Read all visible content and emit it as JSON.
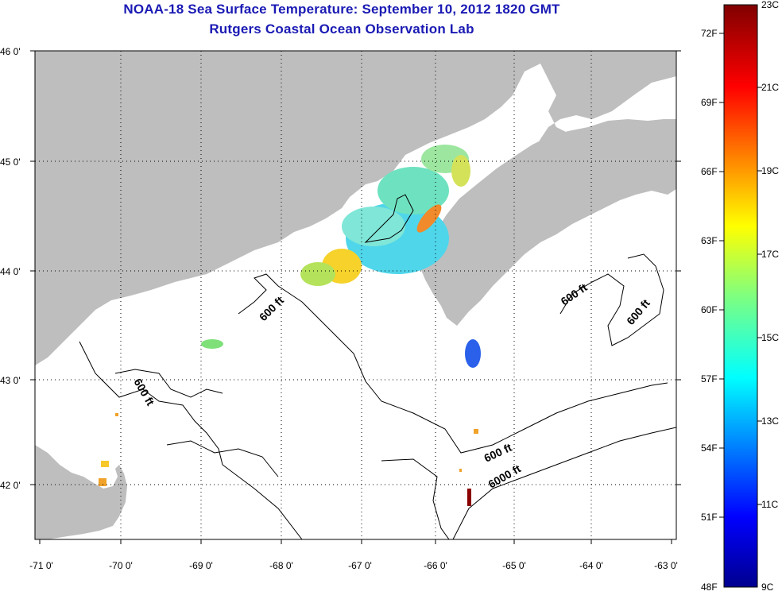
{
  "title": {
    "line1": "NOAA-18 Sea Surface Temperature:  September 10, 2012 1820 GMT",
    "line2": "Rutgers Coastal Ocean Observation Lab"
  },
  "axes": {
    "x_ticks": [
      "-71 0'",
      "-70 0'",
      "-69 0'",
      "-68 0'",
      "-67 0'",
      "-66 0'",
      "-65 0'",
      "-64 0'",
      "-63 0'"
    ],
    "y_ticks": [
      "46 0'",
      "45 0'",
      "44 0'",
      "43 0'",
      "42 0'"
    ],
    "lon_range": [
      -71,
      -63
    ],
    "lat_range": [
      41.5,
      46
    ]
  },
  "contour_labels": [
    {
      "text": "600 ft"
    },
    {
      "text": "600 ft"
    },
    {
      "text": "600 ft"
    },
    {
      "text": "600 ft"
    },
    {
      "text": "600 ft"
    },
    {
      "text": "6000 ft"
    }
  ],
  "colorbar": {
    "fahrenheit": [
      "72F",
      "69F",
      "66F",
      "63F",
      "60F",
      "57F",
      "54F",
      "51F",
      "48F"
    ],
    "celsius": [
      "23C",
      "21C",
      "19C",
      "17C",
      "15C",
      "13C",
      "11C",
      "9C"
    ]
  },
  "colors": {
    "land": "#bebebe",
    "title": "#1a1ab4"
  }
}
